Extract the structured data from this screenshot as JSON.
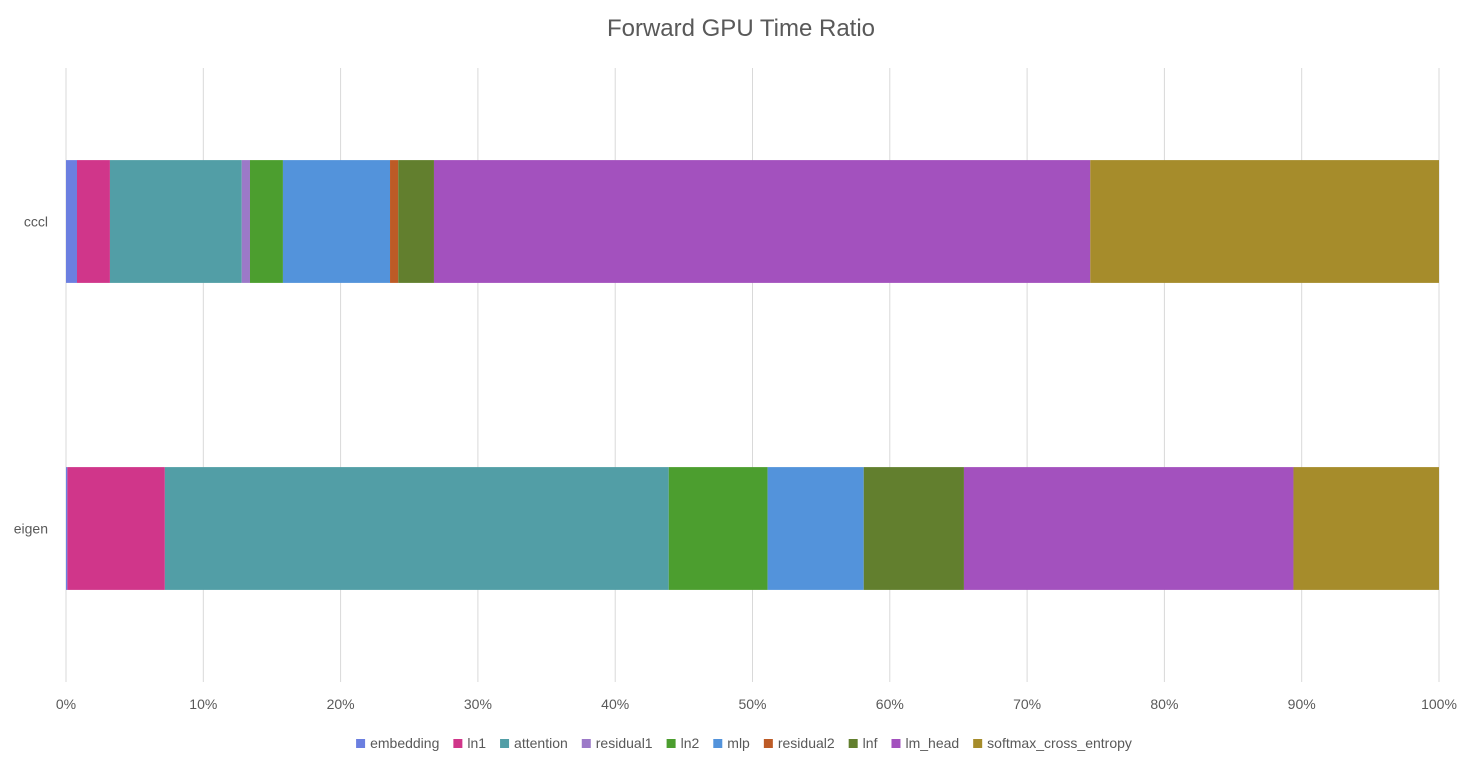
{
  "chart_data": {
    "type": "bar",
    "orientation": "horizontal",
    "stacked": "percent",
    "title": "Forward GPU Time Ratio",
    "xlabel": "",
    "ylabel": "",
    "categories": [
      "cccl",
      "eigen"
    ],
    "xlim": [
      0,
      100
    ],
    "x_ticks": [
      "0%",
      "10%",
      "20%",
      "30%",
      "40%",
      "50%",
      "60%",
      "70%",
      "80%",
      "90%",
      "100%"
    ],
    "grid": "vertical",
    "legend": "bottom",
    "series": [
      {
        "name": "embedding",
        "color": "#6b7fe0",
        "values": [
          0.8,
          0.1
        ]
      },
      {
        "name": "ln1",
        "color": "#d0368a",
        "values": [
          2.4,
          7.1
        ]
      },
      {
        "name": "attention",
        "color": "#529ea6",
        "values": [
          9.6,
          36.7
        ]
      },
      {
        "name": "residual1",
        "color": "#9c79c8",
        "values": [
          0.6,
          0.0
        ]
      },
      {
        "name": "ln2",
        "color": "#4c9e2f",
        "values": [
          2.4,
          7.2
        ]
      },
      {
        "name": "mlp",
        "color": "#5393db",
        "values": [
          7.8,
          7.0
        ]
      },
      {
        "name": "residual2",
        "color": "#bd5b26",
        "values": [
          0.6,
          0.0
        ]
      },
      {
        "name": "lnf",
        "color": "#627f2e",
        "values": [
          2.6,
          7.3
        ]
      },
      {
        "name": "lm_head",
        "color": "#a351be",
        "values": [
          47.8,
          24.0
        ]
      },
      {
        "name": "softmax_cross_entropy",
        "color": "#a68c2b",
        "values": [
          25.4,
          10.6
        ]
      }
    ]
  }
}
